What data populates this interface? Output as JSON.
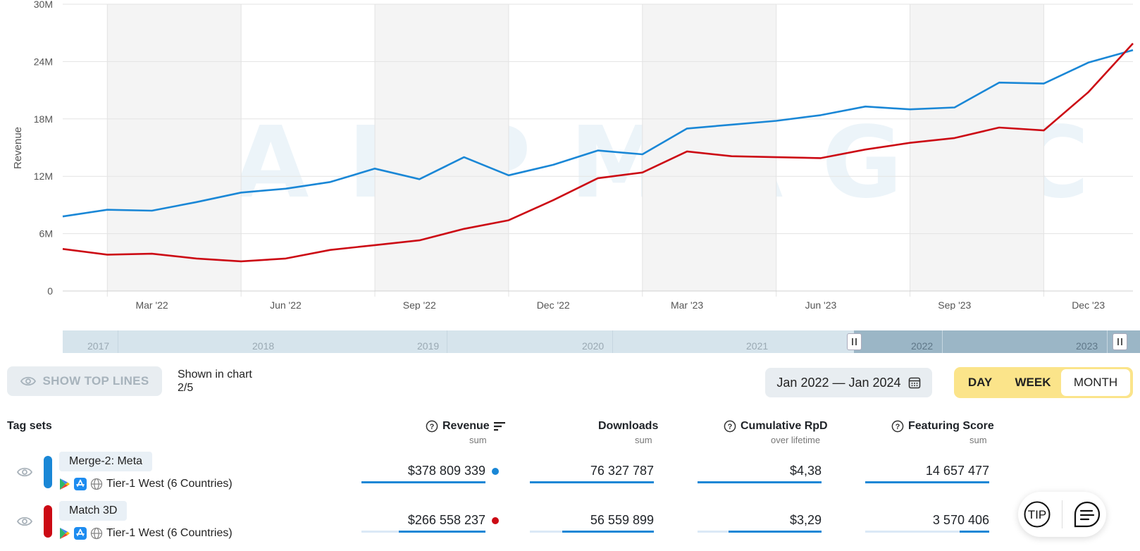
{
  "chart_data": {
    "type": "line",
    "ylabel": "Revenue",
    "watermark": "APPMAGIC",
    "y_ticks": [
      "0",
      "6M",
      "12M",
      "18M",
      "24M",
      "30M"
    ],
    "ylim": [
      0,
      30000000
    ],
    "x_tick_labels": [
      "Mar '22",
      "Jun '22",
      "Sep '22",
      "Dec '22",
      "Mar '23",
      "Jun '23",
      "Sep '23",
      "Dec '23"
    ],
    "categories": [
      "Jan 2022",
      "Feb 2022",
      "Mar 2022",
      "Apr 2022",
      "May 2022",
      "Jun 2022",
      "Jul 2022",
      "Aug 2022",
      "Sep 2022",
      "Oct 2022",
      "Nov 2022",
      "Dec 2022",
      "Jan 2023",
      "Feb 2023",
      "Mar 2023",
      "Apr 2023",
      "May 2023",
      "Jun 2023",
      "Jul 2023",
      "Aug 2023",
      "Sep 2023",
      "Oct 2023",
      "Nov 2023",
      "Dec 2023",
      "Jan 2024"
    ],
    "series": [
      {
        "name": "Merge-2: Meta",
        "color": "#1a87d6",
        "values": [
          7800000,
          8500000,
          8400000,
          9300000,
          10300000,
          10700000,
          11400000,
          12800000,
          11700000,
          14000000,
          12100000,
          13200000,
          14700000,
          14300000,
          17000000,
          17400000,
          17800000,
          18400000,
          19300000,
          19000000,
          19200000,
          21800000,
          21700000,
          23900000,
          25200000
        ]
      },
      {
        "name": "Match 3D",
        "color": "#cc0a14",
        "values": [
          4400000,
          3800000,
          3900000,
          3400000,
          3100000,
          3400000,
          4300000,
          4800000,
          5300000,
          6500000,
          7400000,
          9500000,
          11800000,
          12400000,
          14600000,
          14100000,
          14000000,
          13900000,
          14800000,
          15500000,
          16000000,
          17100000,
          16800000,
          20800000,
          25900000
        ]
      }
    ]
  },
  "navigator": {
    "years": [
      "2017",
      "2018",
      "2019",
      "2020",
      "2021",
      "2022",
      "2023"
    ]
  },
  "controls": {
    "show_top_lines": "SHOW TOP LINES",
    "shown_in_chart_label": "Shown in chart",
    "shown_in_chart_value": "2/5",
    "date_range": "Jan 2022 — Jan 2024",
    "periods": [
      "DAY",
      "WEEK",
      "MONTH"
    ],
    "active_period": "MONTH"
  },
  "table": {
    "tag_sets_header": "Tag sets",
    "columns": [
      {
        "label": "Revenue",
        "sub": "sum"
      },
      {
        "label": "Downloads",
        "sub": "sum"
      },
      {
        "label": "Cumulative RpD",
        "sub": "over lifetime"
      },
      {
        "label": "Featuring Score",
        "sub": "sum"
      }
    ],
    "rows": [
      {
        "name": "Merge-2: Meta",
        "color": "#1a87d6",
        "region": "Tier-1 West (6 Countries)",
        "revenue": "$378 809 339",
        "downloads": "76 327 787",
        "rpd": "$4,38",
        "featuring": "14 657 477",
        "fill": [
          1.0,
          1.0,
          1.0,
          1.0
        ]
      },
      {
        "name": "Match 3D",
        "color": "#cc0a14",
        "region": "Tier-1 West (6 Countries)",
        "revenue": "$266 558 237",
        "downloads": "56 559 899",
        "rpd": "$3,29",
        "featuring": "3 570 406",
        "fill": [
          0.7,
          0.74,
          0.75,
          0.24
        ]
      }
    ]
  },
  "floating": {
    "tip": "TIP"
  }
}
